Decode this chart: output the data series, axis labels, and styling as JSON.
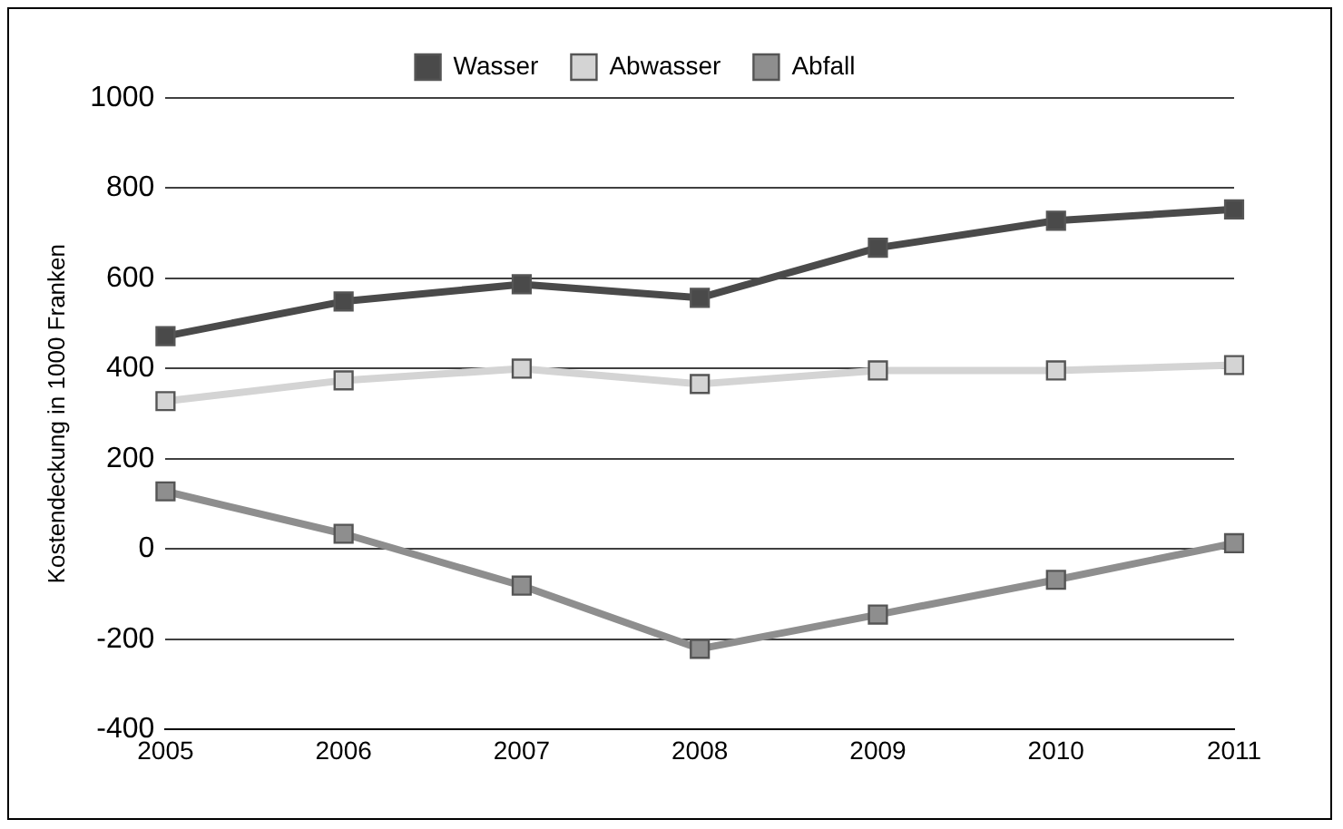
{
  "chart_data": {
    "type": "line",
    "ylabel": "Kostendeckung in 1000 Franken",
    "categories": [
      "2005",
      "2006",
      "2007",
      "2008",
      "2009",
      "2010",
      "2011"
    ],
    "series": [
      {
        "name": "Wasser",
        "color": "#4a4a4a",
        "values": [
          472,
          549,
          587,
          557,
          668,
          728,
          753
        ]
      },
      {
        "name": "Abwasser",
        "color": "#d4d4d4",
        "values": [
          328,
          374,
          400,
          366,
          396,
          396,
          408
        ]
      },
      {
        "name": "Abfall",
        "color": "#8e8e8e",
        "values": [
          128,
          34,
          -81,
          -221,
          -145,
          -68,
          13
        ]
      }
    ],
    "ylim": [
      -400,
      1000
    ],
    "yticks": [
      -400,
      -200,
      0,
      200,
      400,
      600,
      800,
      1000
    ],
    "grid": "y",
    "legend": "top",
    "marker": "square",
    "line_style": "solid"
  }
}
